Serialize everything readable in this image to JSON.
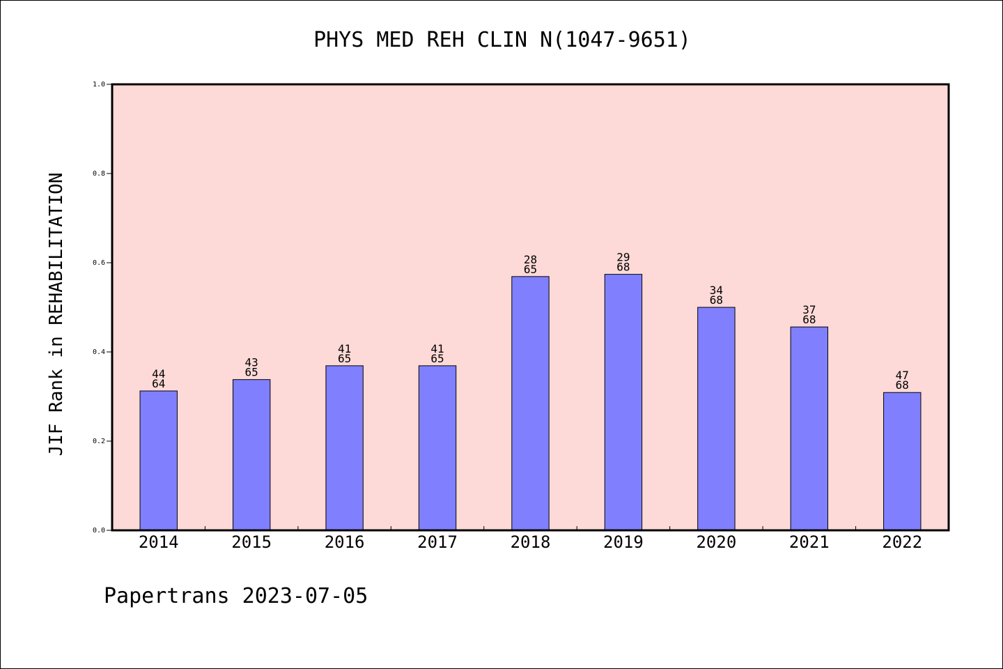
{
  "chart_data": {
    "type": "bar",
    "title": "PHYS MED REH CLIN N(1047-9651)",
    "xlabel": "",
    "ylabel": "JIF Rank in REHABILITATION",
    "ylim": [
      0,
      1.0
    ],
    "yticks": [
      "0.0",
      "0.2",
      "0.4",
      "0.6",
      "0.8",
      "1.0"
    ],
    "categories": [
      "2014",
      "2015",
      "2016",
      "2017",
      "2018",
      "2019",
      "2020",
      "2021",
      "2022"
    ],
    "values": [
      0.3125,
      0.338,
      0.369,
      0.369,
      0.569,
      0.574,
      0.5,
      0.456,
      0.309
    ],
    "rank_labels": [
      {
        "rank": "44",
        "total": "64"
      },
      {
        "rank": "43",
        "total": "65"
      },
      {
        "rank": "41",
        "total": "65"
      },
      {
        "rank": "41",
        "total": "65"
      },
      {
        "rank": "28",
        "total": "65"
      },
      {
        "rank": "29",
        "total": "68"
      },
      {
        "rank": "34",
        "total": "68"
      },
      {
        "rank": "37",
        "total": "68"
      },
      {
        "rank": "47",
        "total": "68"
      }
    ],
    "grid": false,
    "colors": {
      "plot_background": "#fddad7",
      "bar_fill": "#8080ff",
      "bar_stroke": "#000000"
    }
  },
  "footer": "Papertrans 2023-07-05"
}
